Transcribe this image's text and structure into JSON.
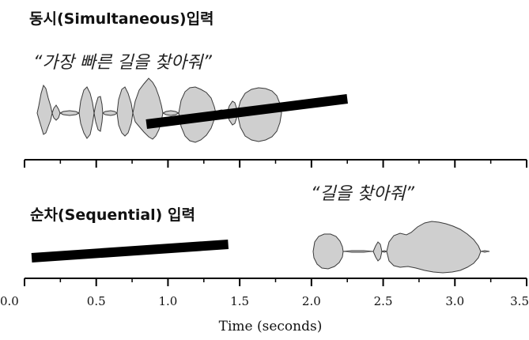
{
  "panel_top": {
    "title": "동시(Simultaneous)입력",
    "quote": "“가장 빠른 길을 찾아줘”",
    "pointer": {
      "start_time_s": 0.85,
      "end_time_s": 2.25
    }
  },
  "panel_bottom": {
    "title": "순차(Sequential) 입력",
    "quote": "“길을 찾아줘”",
    "pointer": {
      "start_time_s": 0.05,
      "end_time_s": 1.42
    }
  },
  "axis": {
    "xlabel": "Time (seconds)",
    "xlim": [
      0.0,
      3.5
    ],
    "ticks": [
      "0.0",
      "0.5",
      "1.0",
      "1.5",
      "2.0",
      "2.5",
      "3.0",
      "3.5"
    ]
  },
  "colors": {
    "waveform_fill": "#cfcfcf",
    "pointer": "#000000"
  }
}
